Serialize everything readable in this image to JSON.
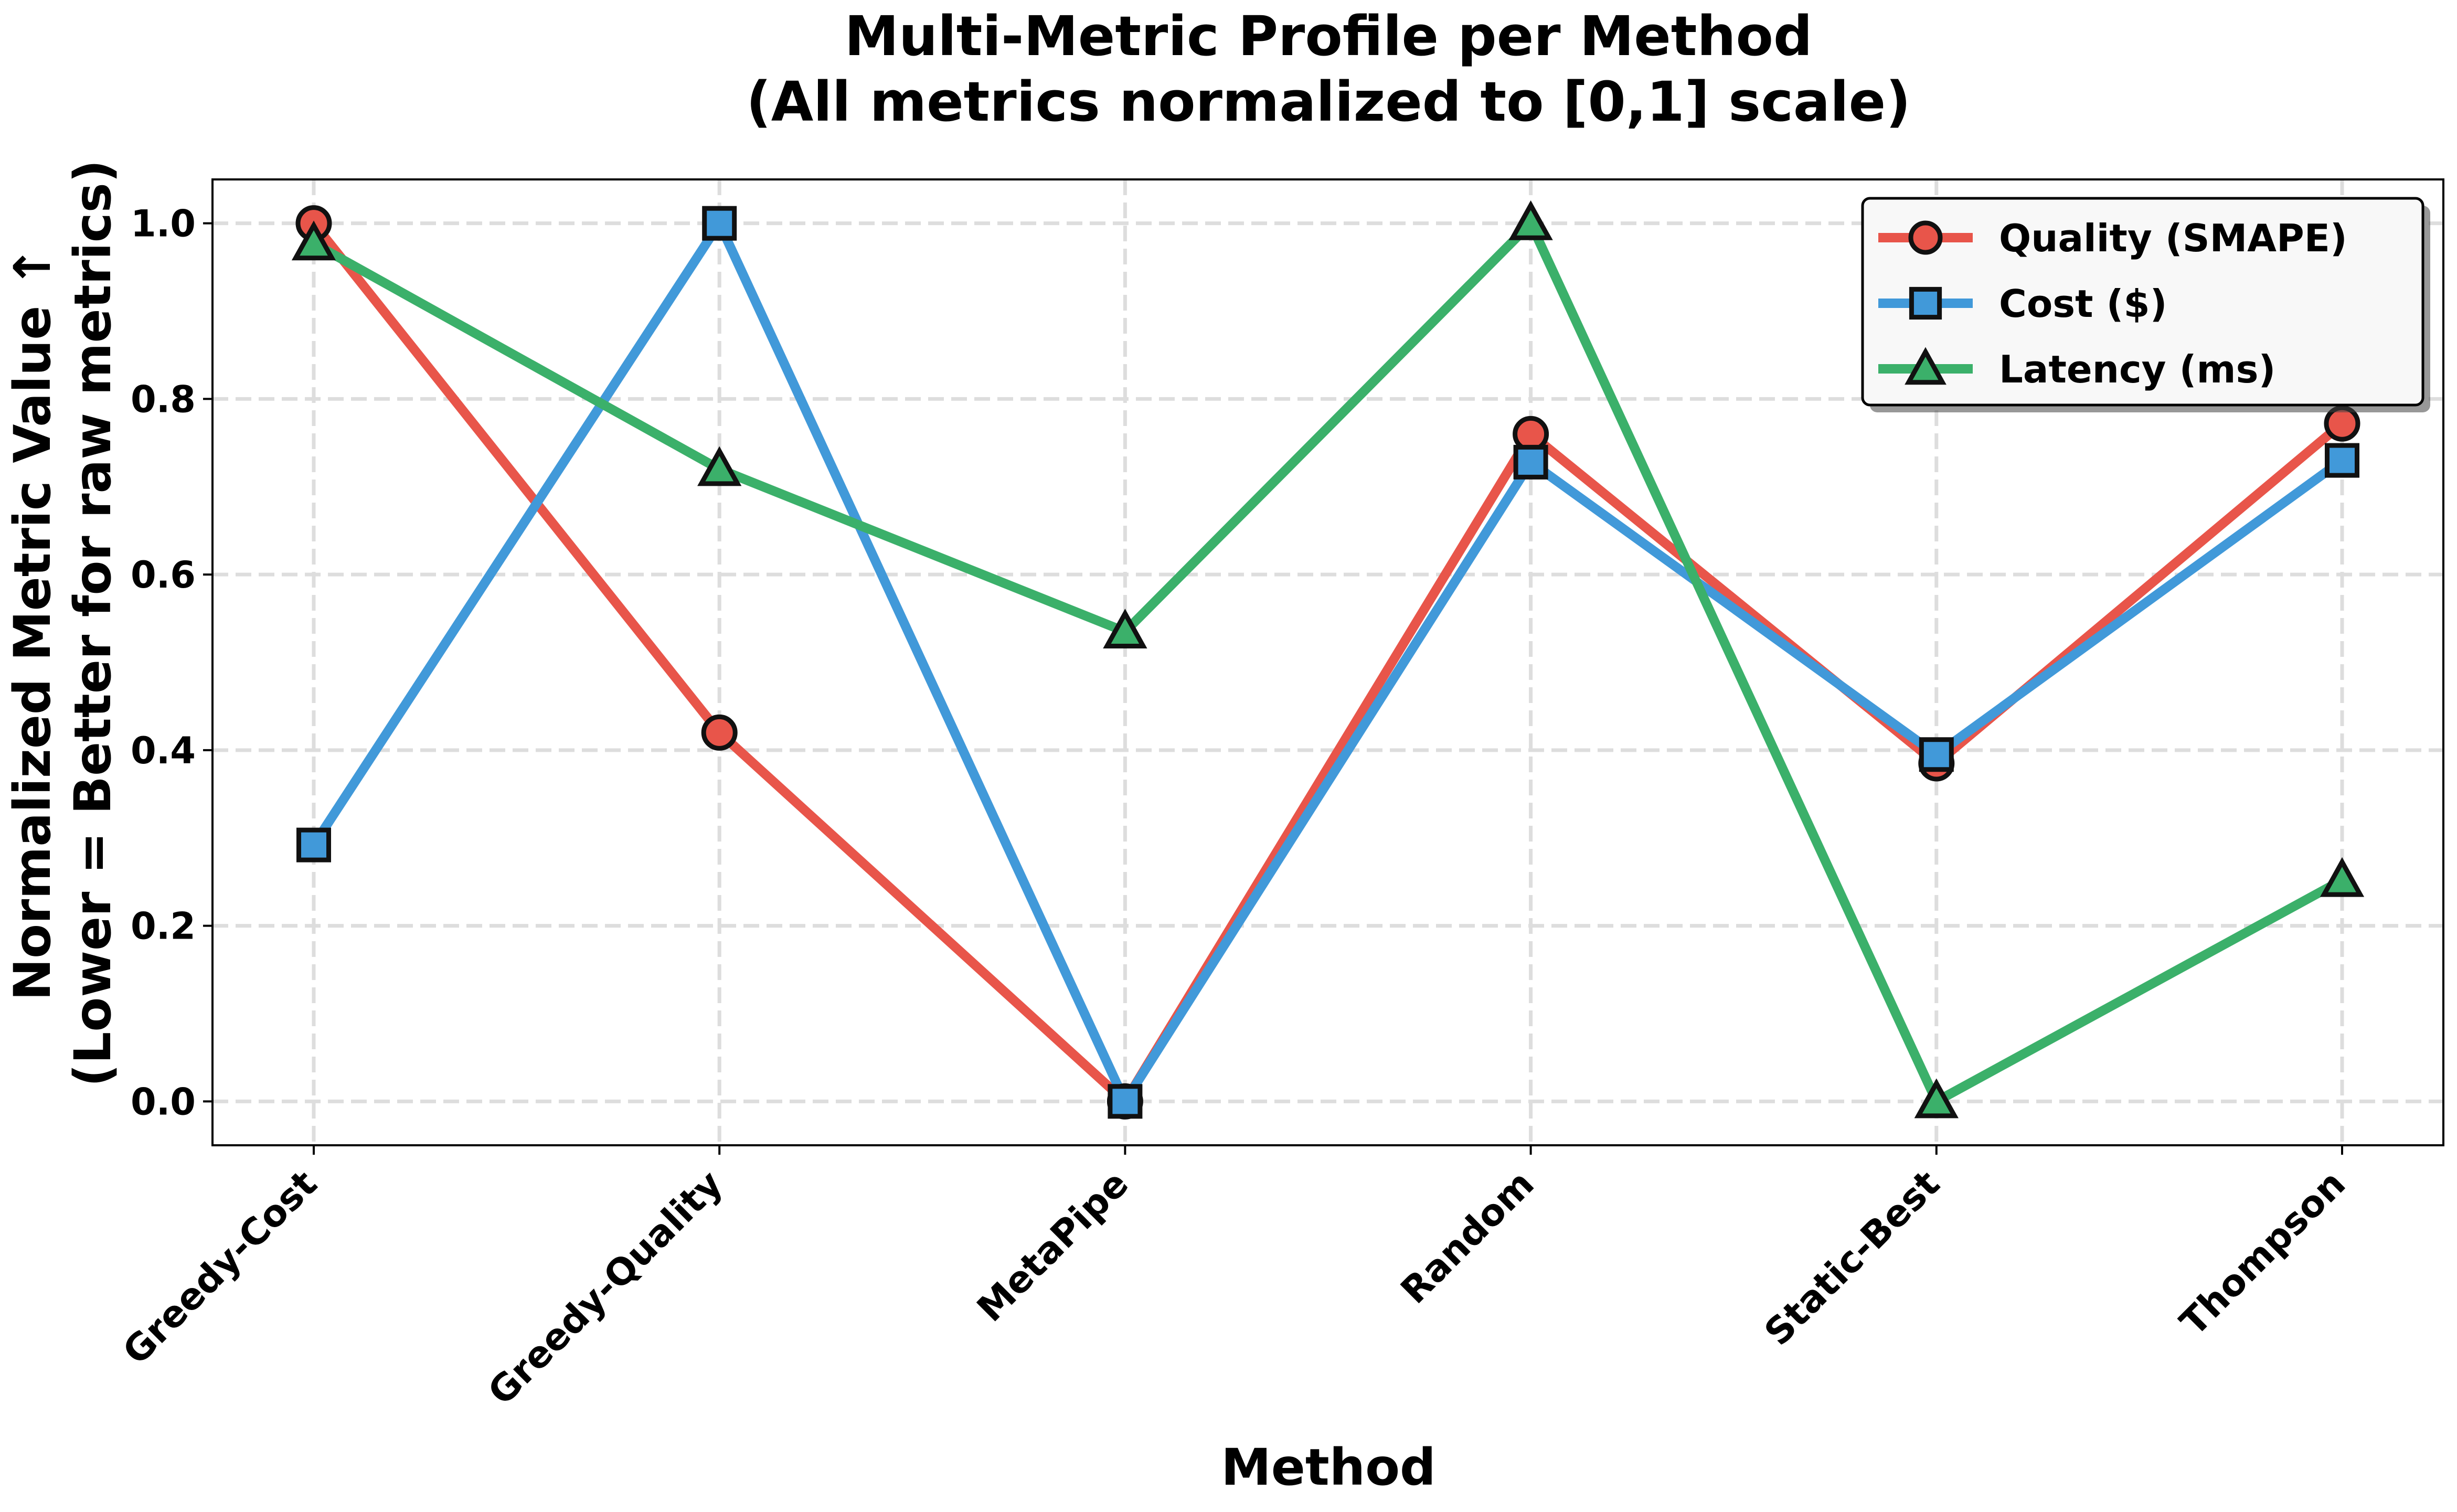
{
  "chart_data": {
    "type": "line",
    "title": "Multi-Metric Profile per Method",
    "subtitle": "(All metrics normalized to [0,1] scale)",
    "xlabel": "Method",
    "ylabel": "Normalized Metric Value ↑",
    "ylabel2": "(Lower = Better for raw metrics)",
    "categories": [
      "Greedy-Cost",
      "Greedy-Quality",
      "MetaPipe",
      "Random",
      "Static-Best",
      "Thompson"
    ],
    "ylim": [
      -0.05,
      1.05
    ],
    "yticks": [
      0.0,
      0.2,
      0.4,
      0.6,
      0.8,
      1.0
    ],
    "ytick_labels": [
      "0.0",
      "0.2",
      "0.4",
      "0.6",
      "0.8",
      "1.0"
    ],
    "grid": true,
    "legend_position": "top-right",
    "series": [
      {
        "name": "Quality (SMAPE)",
        "color": "#e8554a",
        "marker": "circle",
        "values": [
          1.0,
          0.42,
          0.0,
          0.76,
          0.385,
          0.772
        ]
      },
      {
        "name": "Cost ($)",
        "color": "#4199d9",
        "marker": "square",
        "values": [
          0.292,
          1.0,
          0.0,
          0.728,
          0.395,
          0.73
        ]
      },
      {
        "name": "Latency (ms)",
        "color": "#3bb06a",
        "marker": "triangle",
        "values": [
          0.977,
          0.72,
          0.535,
          1.0,
          0.0,
          0.252
        ]
      }
    ]
  }
}
